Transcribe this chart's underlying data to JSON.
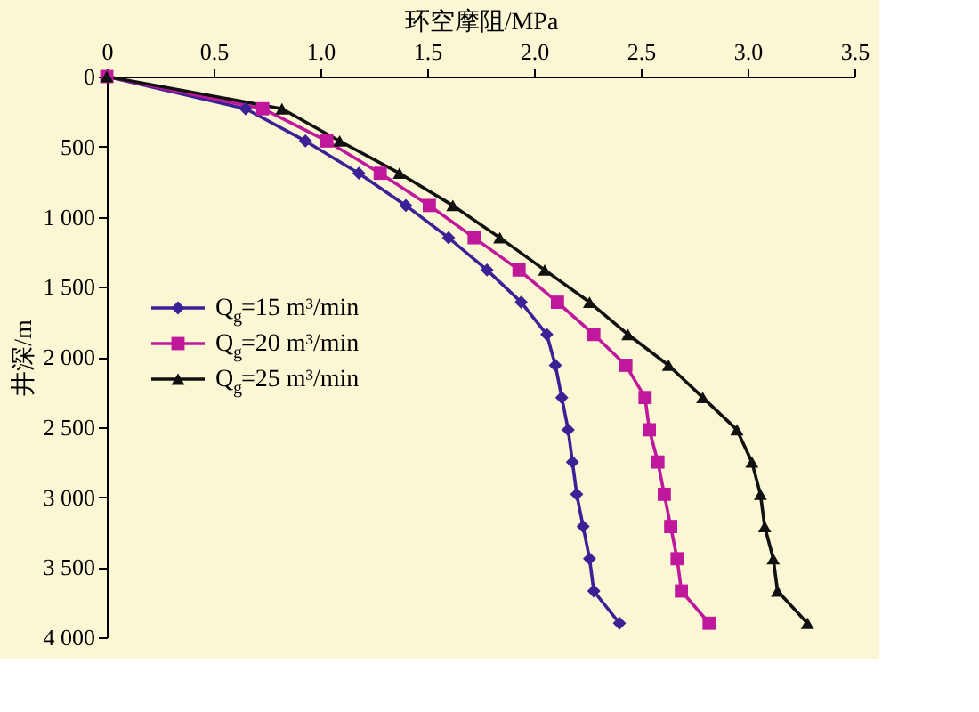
{
  "chart_data": {
    "type": "line",
    "xlabel": "环空摩阻/MPa",
    "ylabel": "井深/m",
    "xlim": [
      0,
      3.5
    ],
    "xticks": [
      0,
      0.5,
      {
        "value": 1,
        "label": "1.0"
      },
      1.5,
      {
        "value": 2,
        "label": "2.0"
      },
      2.5,
      {
        "value": 3,
        "label": "3.0"
      },
      3.5
    ],
    "ylim": [
      4000,
      0
    ],
    "yticks": [
      0,
      500,
      {
        "value": 1000,
        "label": "1 000"
      },
      {
        "value": 1500,
        "label": "1 500"
      },
      {
        "value": 2000,
        "label": "2 000"
      },
      {
        "value": 2500,
        "label": "2 500"
      },
      {
        "value": 3000,
        "label": "3 000"
      },
      {
        "value": 3500,
        "label": "3 500"
      },
      {
        "value": 4000,
        "label": "4 000"
      }
    ],
    "grid": false,
    "legend": "left",
    "line_style": "solid",
    "series": [
      {
        "name": "Q$_{g}$=15 m³/min",
        "color": "#3a2196",
        "marker": "diamond",
        "x": [
          0,
          0.65,
          0.93,
          1.18,
          1.4,
          1.6,
          1.78,
          1.94,
          2.06,
          2.1,
          2.13,
          2.16,
          2.18,
          2.2,
          2.23,
          2.26,
          2.28,
          2.4
        ],
        "values": [
          0,
          230,
          460,
          690,
          920,
          1150,
          1380,
          1610,
          1840,
          2060,
          2290,
          2520,
          2750,
          2980,
          3210,
          3440,
          3670,
          3900
        ]
      },
      {
        "name": "Q$_{g}$=20 m³/min",
        "color": "#c0189c",
        "marker": "square",
        "x": [
          0,
          0.73,
          1.03,
          1.28,
          1.51,
          1.72,
          1.93,
          2.11,
          2.28,
          2.43,
          2.52,
          2.54,
          2.58,
          2.61,
          2.64,
          2.67,
          2.69,
          2.82
        ],
        "values": [
          0,
          230,
          460,
          690,
          920,
          1150,
          1380,
          1610,
          1840,
          2060,
          2290,
          2520,
          2750,
          2980,
          3210,
          3440,
          3670,
          3900
        ]
      },
      {
        "name": "Q$_{g}$=25 m³/min",
        "color": "#111111",
        "marker": "triangle",
        "x": [
          0,
          0.82,
          1.09,
          1.37,
          1.62,
          1.84,
          2.05,
          2.26,
          2.44,
          2.63,
          2.79,
          2.95,
          3.02,
          3.06,
          3.08,
          3.12,
          3.14,
          3.28
        ],
        "values": [
          0,
          230,
          460,
          690,
          920,
          1150,
          1380,
          1610,
          1840,
          2060,
          2290,
          2520,
          2750,
          2980,
          3210,
          3440,
          3670,
          3900
        ]
      }
    ]
  }
}
